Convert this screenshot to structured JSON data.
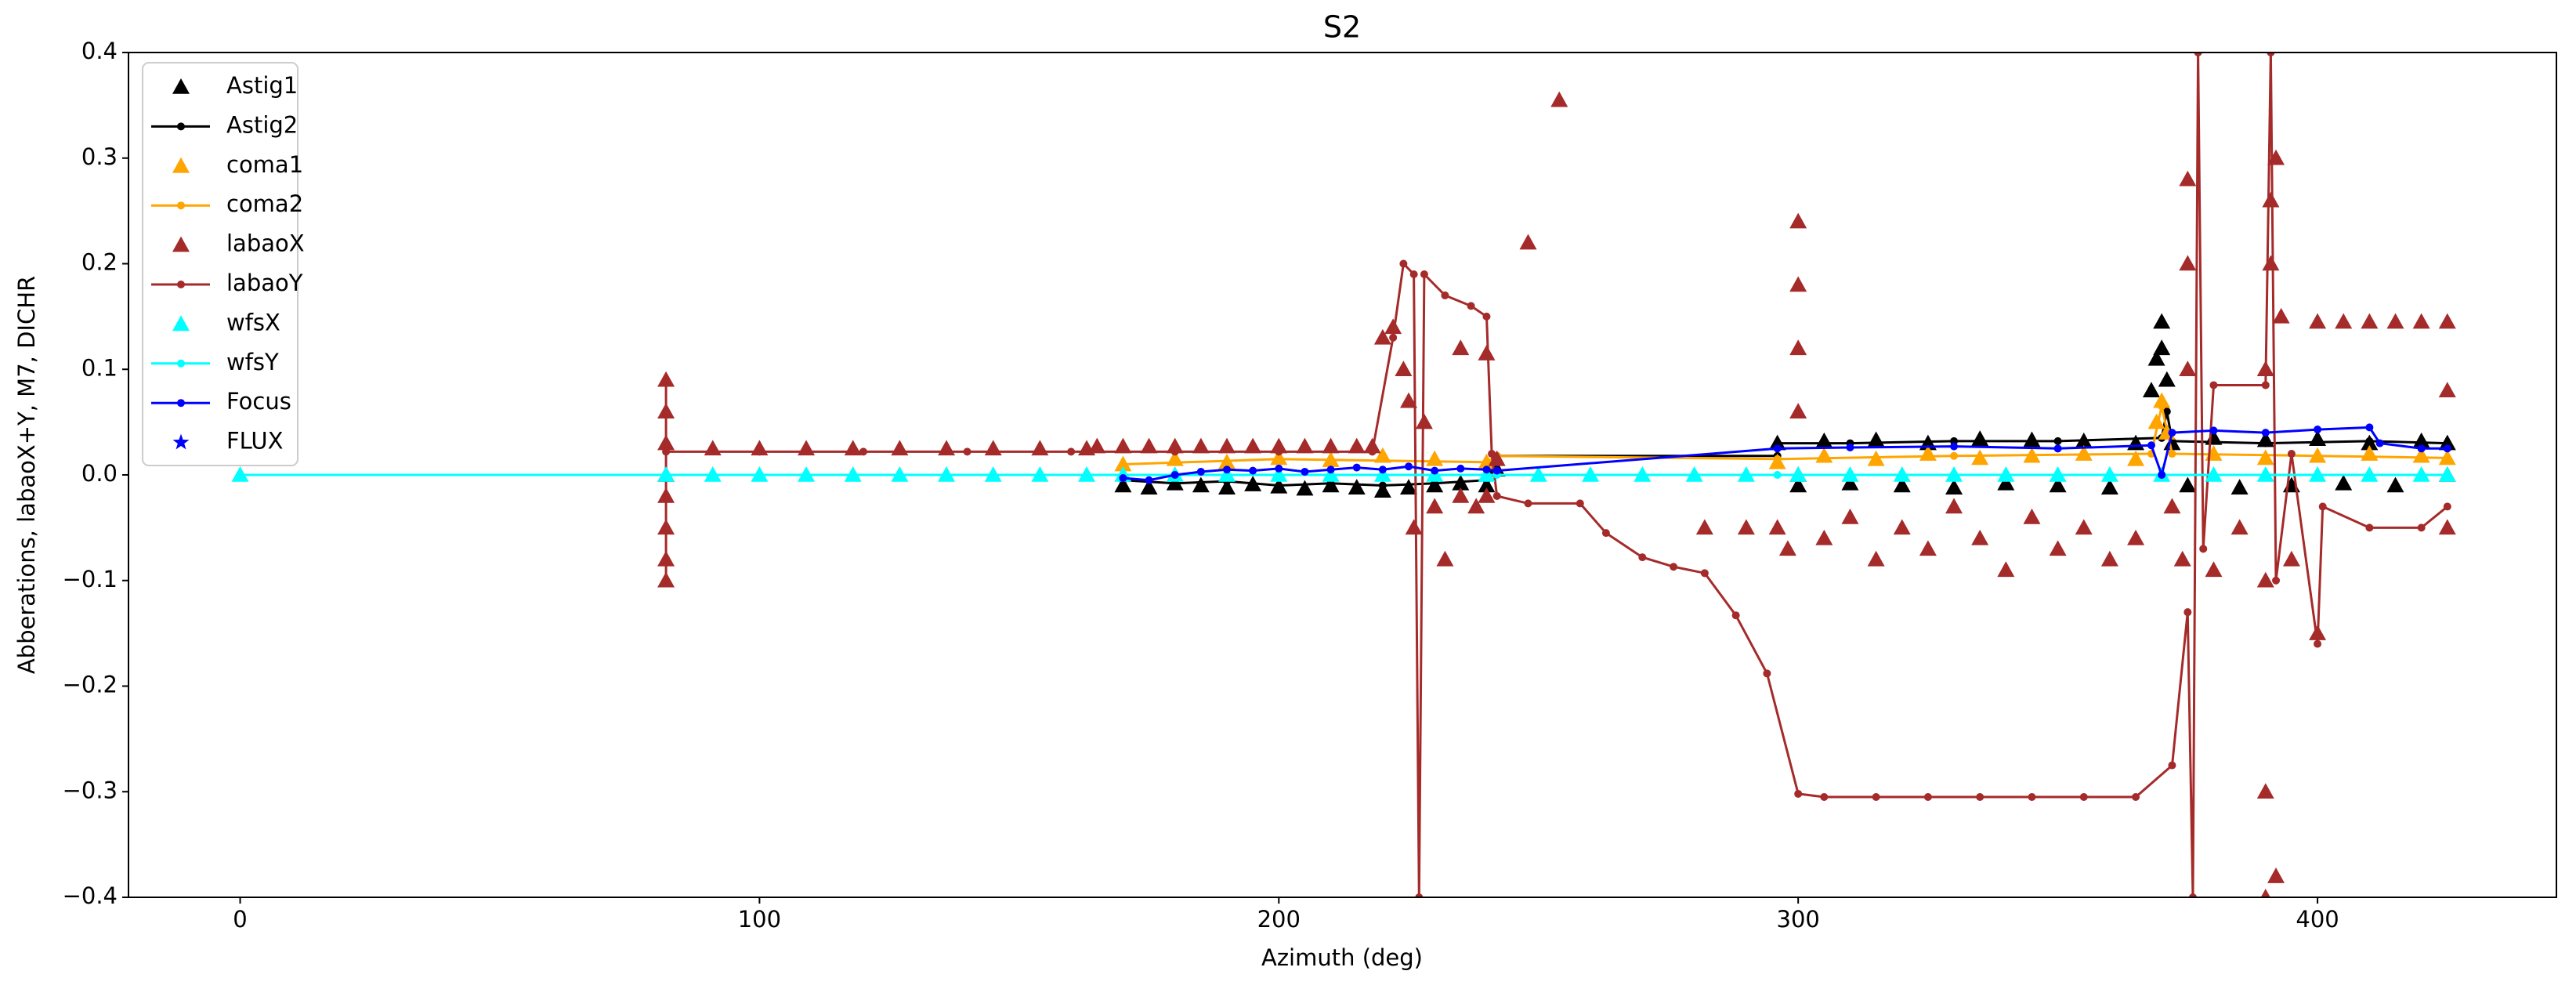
{
  "chart_data": {
    "type": "line",
    "title": "S2",
    "x_label": "Azimuth (deg)",
    "y_label": "Abberations, labaoX+Y, M7, DICHR",
    "xlim": [
      -21.5,
      446
    ],
    "ylim": [
      -0.4,
      0.4
    ],
    "xticks": [
      0,
      100,
      200,
      300,
      400
    ],
    "yticks": [
      {
        "value": -0.4,
        "label": "−0.4"
      },
      {
        "value": -0.3,
        "label": "−0.3"
      },
      {
        "value": -0.2,
        "label": "−0.2"
      },
      {
        "value": -0.1,
        "label": "−0.1"
      },
      {
        "value": 0.0,
        "label": "0.0"
      },
      {
        "value": 0.1,
        "label": "0.1"
      },
      {
        "value": 0.2,
        "label": "0.2"
      },
      {
        "value": 0.3,
        "label": "0.3"
      },
      {
        "value": 0.4,
        "label": "0.4"
      }
    ],
    "grid": false,
    "legend": "upper left",
    "series": [
      {
        "name": "Astig1",
        "color": "#000000",
        "style": "triangle",
        "x": [
          170,
          175,
          180,
          185,
          190,
          195,
          200,
          205,
          210,
          215,
          220,
          225,
          230,
          235,
          240,
          242,
          296,
          300,
          305,
          310,
          315,
          320,
          325,
          330,
          335,
          340,
          345,
          350,
          355,
          360,
          365,
          368,
          369,
          370,
          370,
          371,
          372,
          375,
          380,
          385,
          390,
          395,
          400,
          405,
          410,
          415,
          420,
          425
        ],
        "values": [
          -0.01,
          -0.012,
          -0.008,
          -0.01,
          -0.012,
          -0.009,
          -0.011,
          -0.013,
          -0.01,
          -0.012,
          -0.015,
          -0.012,
          -0.01,
          -0.008,
          -0.01,
          0.005,
          0.03,
          -0.01,
          0.032,
          -0.008,
          0.033,
          -0.01,
          0.03,
          -0.012,
          0.034,
          -0.008,
          0.033,
          -0.01,
          0.032,
          -0.012,
          0.03,
          0.08,
          0.11,
          0.145,
          0.12,
          0.09,
          0.03,
          -0.01,
          0.035,
          -0.012,
          0.033,
          -0.01,
          0.034,
          -0.008,
          0.03,
          -0.01,
          0.032,
          0.03
        ]
      },
      {
        "name": "Astig2",
        "color": "#000000",
        "style": "dot-line",
        "x": [
          170,
          180,
          190,
          200,
          210,
          220,
          230,
          240,
          242,
          296,
          296,
          310,
          330,
          350,
          370,
          371,
          372,
          390,
          410,
          425
        ],
        "values": [
          -0.005,
          -0.008,
          -0.006,
          -0.01,
          -0.008,
          -0.01,
          -0.008,
          -0.005,
          0.018,
          0.018,
          0.03,
          0.03,
          0.032,
          0.032,
          0.035,
          0.06,
          0.032,
          0.03,
          0.032,
          0.03
        ]
      },
      {
        "name": "coma1",
        "color": "#ffa500",
        "style": "triangle",
        "x": [
          170,
          180,
          190,
          200,
          210,
          220,
          230,
          240,
          296,
          305,
          315,
          325,
          335,
          345,
          355,
          365,
          369,
          370,
          371,
          380,
          390,
          400,
          410,
          420,
          425
        ],
        "values": [
          0.01,
          0.015,
          0.012,
          0.016,
          0.014,
          0.018,
          0.015,
          0.012,
          0.012,
          0.018,
          0.015,
          0.02,
          0.016,
          0.018,
          0.02,
          0.015,
          0.05,
          0.07,
          0.04,
          0.02,
          0.016,
          0.018,
          0.02,
          0.018,
          0.016
        ]
      },
      {
        "name": "coma2",
        "color": "#ffa500",
        "style": "dot-line",
        "x": [
          170,
          200,
          240,
          242,
          296,
          330,
          368,
          370,
          372,
          400,
          425
        ],
        "values": [
          0.01,
          0.015,
          0.012,
          0.018,
          0.015,
          0.018,
          0.02,
          0.065,
          0.02,
          0.018,
          0.016
        ]
      },
      {
        "name": "labaoX",
        "color": "#a52a2a",
        "style": "triangle",
        "x": [
          82,
          82,
          82,
          82,
          82,
          82,
          82,
          82,
          91,
          100,
          109,
          118,
          127,
          136,
          145,
          154,
          163,
          165,
          170,
          175,
          180,
          185,
          190,
          195,
          200,
          205,
          210,
          215,
          218,
          220,
          222,
          224,
          225,
          226,
          228,
          230,
          232,
          235,
          238,
          240,
          242,
          235,
          240,
          248,
          254,
          282,
          290,
          296,
          298,
          300,
          300,
          300,
          300,
          300,
          305,
          310,
          315,
          320,
          325,
          330,
          335,
          340,
          345,
          350,
          355,
          360,
          365,
          372,
          374,
          375,
          375,
          375,
          380,
          385,
          390,
          390,
          390,
          390,
          391,
          391,
          392,
          392,
          393,
          395,
          400,
          400,
          405,
          410,
          415,
          420,
          425,
          425,
          425,
          425
        ],
        "values": [
          -0.1,
          -0.08,
          -0.05,
          -0.02,
          0.0,
          0.03,
          0.06,
          0.09,
          0.025,
          0.025,
          0.025,
          0.025,
          0.025,
          0.025,
          0.025,
          0.025,
          0.025,
          0.027,
          0.027,
          0.027,
          0.027,
          0.027,
          0.027,
          0.027,
          0.027,
          0.027,
          0.027,
          0.027,
          0.027,
          0.13,
          0.14,
          0.1,
          0.07,
          -0.05,
          0.05,
          -0.03,
          -0.08,
          -0.02,
          -0.03,
          -0.02,
          0.015,
          0.12,
          0.115,
          0.22,
          0.355,
          -0.05,
          -0.05,
          -0.05,
          -0.07,
          0.0,
          0.06,
          0.12,
          0.18,
          0.24,
          -0.06,
          -0.04,
          -0.08,
          -0.05,
          -0.07,
          -0.03,
          -0.06,
          -0.09,
          -0.04,
          -0.07,
          -0.05,
          -0.08,
          -0.06,
          -0.03,
          -0.08,
          0.1,
          0.2,
          0.28,
          -0.09,
          -0.05,
          -0.4,
          -0.3,
          -0.1,
          0.1,
          0.2,
          0.26,
          0.3,
          -0.38,
          0.15,
          -0.08,
          0.145,
          -0.15,
          0.145,
          0.145,
          0.145,
          0.145,
          -0.05,
          0.0,
          0.08,
          0.145
        ]
      },
      {
        "name": "labaoY",
        "color": "#a52a2a",
        "style": "dot-line",
        "x": [
          82,
          82,
          82,
          100,
          120,
          140,
          160,
          180,
          200,
          218,
          222,
          224,
          226,
          227,
          228,
          232,
          237,
          240,
          241,
          242,
          248,
          258,
          263,
          270,
          276,
          282,
          288,
          294,
          300,
          305,
          315,
          325,
          335,
          345,
          355,
          365,
          372,
          375,
          376,
          377,
          378,
          380,
          390,
          391,
          392,
          395,
          400,
          401,
          410,
          420,
          425
        ],
        "values": [
          -0.1,
          0.09,
          0.022,
          0.022,
          0.022,
          0.022,
          0.022,
          0.022,
          0.022,
          0.022,
          0.13,
          0.2,
          0.19,
          -0.4,
          0.19,
          0.17,
          0.16,
          0.15,
          0.02,
          -0.02,
          -0.027,
          -0.027,
          -0.055,
          -0.078,
          -0.087,
          -0.093,
          -0.133,
          -0.188,
          -0.302,
          -0.305,
          -0.305,
          -0.305,
          -0.305,
          -0.305,
          -0.305,
          -0.305,
          -0.275,
          -0.13,
          -0.4,
          0.4,
          -0.07,
          0.085,
          0.085,
          0.4,
          -0.1,
          0.02,
          -0.16,
          -0.03,
          -0.05,
          -0.05,
          -0.03
        ]
      },
      {
        "name": "wfsX",
        "color": "#00ffff",
        "style": "triangle",
        "x": [
          0,
          82,
          91,
          100,
          109,
          118,
          127,
          136,
          145,
          154,
          163,
          170,
          180,
          190,
          200,
          210,
          220,
          230,
          240,
          250,
          260,
          270,
          280,
          290,
          300,
          310,
          320,
          330,
          340,
          350,
          360,
          370,
          380,
          390,
          400,
          410,
          420,
          425
        ],
        "values": [
          0,
          0,
          0,
          0,
          0,
          0,
          0,
          0,
          0,
          0,
          0,
          0,
          0,
          0,
          0,
          0,
          0,
          0,
          0,
          0,
          0,
          0,
          0,
          0,
          0,
          0,
          0,
          0,
          0,
          0,
          0,
          0,
          0,
          0,
          0,
          0,
          0,
          0
        ]
      },
      {
        "name": "wfsY",
        "color": "#00ffff",
        "style": "dot-line",
        "x": [
          0,
          82,
          170,
          242,
          296,
          425
        ],
        "values": [
          0,
          0,
          0,
          0,
          0,
          0
        ]
      },
      {
        "name": "Focus",
        "color": "#0000ff",
        "style": "dot-line",
        "x": [
          170,
          175,
          180,
          185,
          190,
          195,
          200,
          205,
          210,
          215,
          220,
          225,
          230,
          235,
          240,
          242,
          296,
          310,
          330,
          350,
          368,
          370,
          372,
          380,
          390,
          400,
          410,
          412,
          420,
          425
        ],
        "values": [
          -0.003,
          -0.005,
          0.0,
          0.003,
          0.005,
          0.004,
          0.006,
          0.003,
          0.005,
          0.007,
          0.005,
          0.008,
          0.004,
          0.006,
          0.005,
          0.004,
          0.025,
          0.026,
          0.027,
          0.025,
          0.028,
          0.0,
          0.04,
          0.042,
          0.04,
          0.043,
          0.045,
          0.03,
          0.025,
          0.025
        ]
      },
      {
        "name": "FLUX",
        "color": "#0000ff",
        "style": "star",
        "x": [],
        "values": []
      }
    ]
  }
}
